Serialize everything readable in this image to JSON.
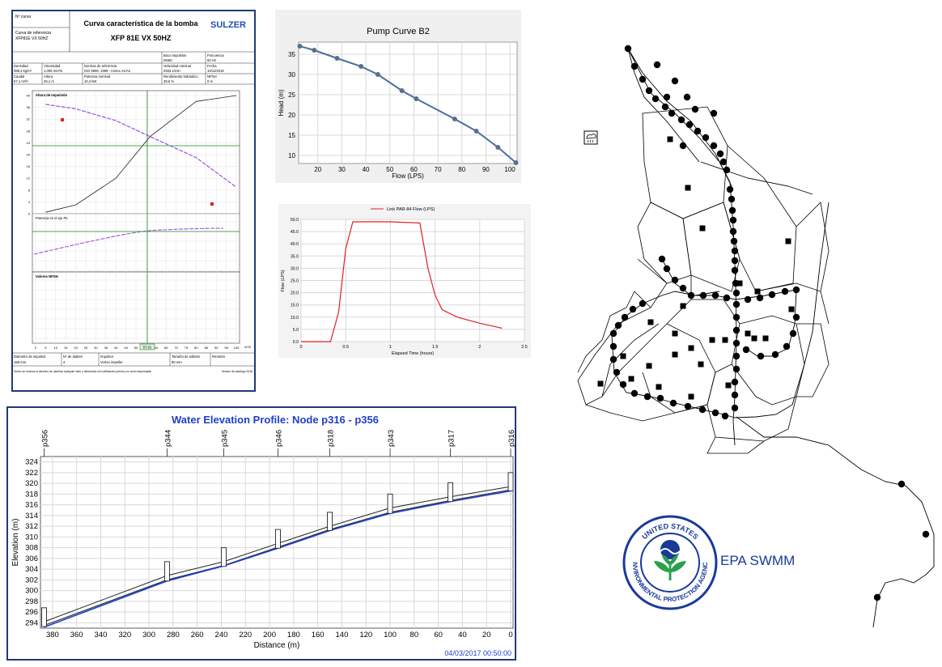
{
  "colors": {
    "panel_border": "#1f3a7a",
    "profile_title": "#1f3fd0",
    "pump_curve_line": "#4a6fa0",
    "flow_line": "#e02020",
    "sulzer_blue": "#1a4fb0",
    "sulzer_purple": "#a050e0",
    "sulzer_green": "#1a8a1a",
    "epa_green": "#2aa14a",
    "epa_blue": "#1a3a9a"
  },
  "sulzer": {
    "logo": "SULZER",
    "title_line1": "Curva característica de la bomba",
    "title_line2": "XFP 81E VX 50HZ",
    "field_no_curva": "Nº curva",
    "field_curva_ref": "Curva de referencia",
    "field_curva_ref_value": "XFP81E VX 50HZ",
    "row1": [
      "Boca impulsión",
      "Frecuencia"
    ],
    "row1_values": [
      "DN80",
      "50 Hz"
    ],
    "row2": [
      "Densidad",
      "Viscosidad",
      "Normas de referencia",
      "Velocidad nominal",
      "Fecha"
    ],
    "row2_values": [
      "998,3 kg/m³",
      "1,005 mm²/s",
      "ISO 9906: 1999 - Annex A1/A2",
      "2933 1/min",
      "10/11/2016"
    ],
    "row3": [
      "Caudal",
      "Altura",
      "Potencia nominal",
      "Rendimiento hidráulico",
      "NPSH"
    ],
    "row3_values": [
      "57,1 m³/h",
      "26,1 m",
      "10,4 kW",
      "38,5 %",
      "0 m"
    ],
    "section1": "Altura de impulsión",
    "section2": "Potencia en el eje P2",
    "section3": "Valores NPSH",
    "marker_value": "57,01",
    "footer": [
      "Diámetro de impulsor",
      "Nº de álabes",
      "Impulsor",
      "Tamaño de sólidos",
      "Revisión"
    ],
    "footer_values": [
      "188 mm",
      "4",
      "Vortex impeller",
      "80 mm",
      ""
    ],
    "footnote": "Sulzer se reserva el derecho de cambiar cualquier dato o dimensión sin notificación previa y no será responsable",
    "version": "Versión de catálogo 2016",
    "head_ylabels": [
      "40",
      "36",
      "32",
      "28",
      "24",
      "20",
      "16",
      "12",
      "8",
      "4",
      "0"
    ],
    "xlabels": [
      "0",
      "5",
      "10",
      "15",
      "20",
      "25",
      "30",
      "35",
      "40",
      "45",
      "50",
      "55",
      "60",
      "65",
      "70",
      "75",
      "80",
      "85",
      "90",
      "95",
      "100"
    ],
    "xunit": "m³/h"
  },
  "pump": {
    "title": "Pump Curve B2",
    "xlabel": "Flow (LPS)",
    "ylabel": "Head (m)",
    "xticks": [
      "20",
      "30",
      "40",
      "50",
      "60",
      "70",
      "80",
      "90",
      "100"
    ],
    "yticks": [
      "10",
      "15",
      "20",
      "25",
      "30",
      "35"
    ]
  },
  "flow": {
    "legend": "Link PAR-84 Flow (LPS)",
    "xlabel": "Elapsed Time (hours)",
    "ylabel": "Flow (LPS)",
    "xticks": [
      "0",
      "0.5",
      "1",
      "1.5",
      "2",
      "2.5"
    ],
    "yticks": [
      "0.0",
      "5.0",
      "10.0",
      "15.0",
      "20.0",
      "25.0",
      "30.0",
      "35.0",
      "40.0",
      "45.0",
      "50.0"
    ]
  },
  "profile": {
    "title": "Water Elevation Profile:  Node p316 - p356",
    "xlabel": "Distance (m)",
    "ylabel": "Elevation (m)",
    "timestamp": "04/03/2017 00:50:00",
    "yticks": [
      "294",
      "296",
      "298",
      "300",
      "302",
      "304",
      "306",
      "308",
      "310",
      "312",
      "314",
      "316",
      "318",
      "320",
      "322",
      "324"
    ],
    "xticks": [
      "380",
      "360",
      "340",
      "320",
      "300",
      "280",
      "260",
      "240",
      "220",
      "200",
      "180",
      "160",
      "140",
      "120",
      "100",
      "80",
      "60",
      "40",
      "20",
      "0"
    ]
  },
  "epa": {
    "label": "EPA SWMM",
    "seal_top": "UNITED STATES",
    "seal_bottom": "ENVIRONMENTAL PROTECTION AGENCY"
  },
  "chart_data": [
    {
      "type": "line",
      "title": "Pump Curve B2",
      "xlabel": "Flow (LPS)",
      "ylabel": "Head (m)",
      "xlim": [
        12,
        103
      ],
      "ylim": [
        8,
        38
      ],
      "grid": true,
      "x": [
        12.5,
        18.5,
        28,
        38,
        45,
        55,
        61,
        77,
        86,
        95,
        102.5
      ],
      "series": [
        {
          "values": [
            37,
            36,
            34,
            32,
            30,
            26,
            24,
            19,
            16,
            12,
            8.2
          ]
        }
      ]
    },
    {
      "type": "line",
      "title": "",
      "xlabel": "Elapsed Time (hours)",
      "ylabel": "Flow (LPS)",
      "xlim": [
        0,
        2.5
      ],
      "ylim": [
        0,
        50
      ],
      "grid": true,
      "legend": "top-center",
      "x": [
        0,
        0.33,
        0.42,
        0.5,
        0.58,
        1.0,
        1.33,
        1.42,
        1.5,
        1.58,
        1.75,
        2.0,
        2.25
      ],
      "series": [
        {
          "name": "Link PAR-84 Flow (LPS)",
          "values": [
            0,
            0,
            12,
            38,
            49,
            49,
            48.5,
            30,
            19,
            13,
            10,
            7.5,
            5.5
          ]
        }
      ]
    },
    {
      "type": "line",
      "title": "Water Elevation Profile:  Node p316 - p356",
      "xlabel": "Distance (m)",
      "ylabel": "Elevation (m)",
      "xlim": [
        390,
        -2
      ],
      "ylim": [
        293,
        325
      ],
      "grid": true,
      "nodes": [
        "p356",
        "p344",
        "p345",
        "p346",
        "p318",
        "p343",
        "p317",
        "p316"
      ],
      "x": [
        387,
        285,
        238,
        193,
        150,
        100,
        50,
        0
      ],
      "series": [
        {
          "name": "ground",
          "values": [
            293.5,
            302.0,
            304.7,
            308.1,
            311.4,
            314.6,
            316.8,
            318.8
          ]
        },
        {
          "name": "crown",
          "values": [
            294.2,
            302.8,
            305.4,
            308.8,
            312.0,
            315.4,
            317.5,
            319.4
          ]
        },
        {
          "name": "water",
          "values": [
            293.2,
            301.8,
            304.6,
            307.9,
            311.2,
            314.4,
            316.6,
            318.6
          ]
        }
      ]
    },
    {
      "type": "line",
      "title": "Curva característica de la bomba",
      "xlabel": "m³/h",
      "ylabel": "Altura de impulsión",
      "xlim": [
        0,
        100
      ],
      "ylim": [
        0,
        40
      ],
      "grid": true,
      "x": [
        5,
        20,
        40,
        57,
        80,
        100
      ],
      "series": [
        {
          "name": "Altura de impulsión",
          "values": [
            37,
            35.5,
            31.5,
            26.1,
            19,
            9
          ]
        },
        {
          "name": "Sistema",
          "values": [
            0.5,
            3,
            12,
            26.1,
            38,
            40
          ]
        }
      ]
    }
  ]
}
